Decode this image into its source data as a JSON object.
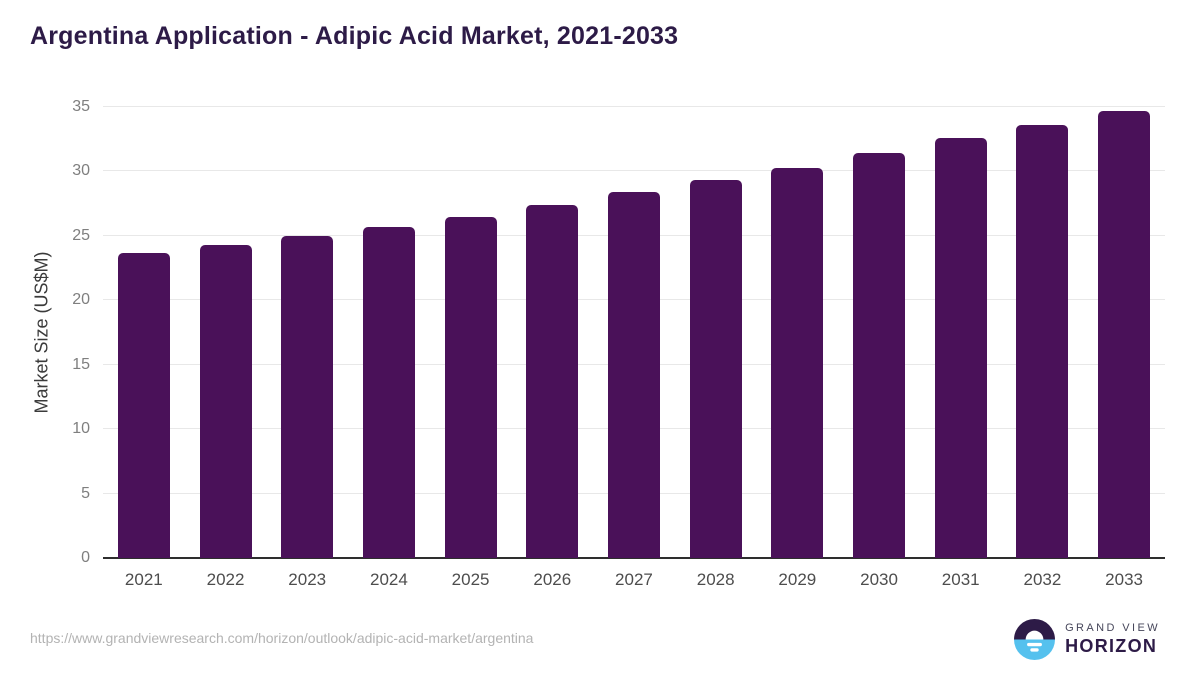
{
  "chart_data": {
    "type": "bar",
    "title": "Argentina Application - Adipic Acid Market, 2021-2033",
    "xlabel": "",
    "ylabel": "Market Size (US$M)",
    "categories": [
      "2021",
      "2022",
      "2023",
      "2024",
      "2025",
      "2026",
      "2027",
      "2028",
      "2029",
      "2030",
      "2031",
      "2032",
      "2033"
    ],
    "values": [
      23.7,
      24.3,
      25.0,
      25.7,
      26.5,
      27.4,
      28.4,
      29.3,
      30.3,
      31.4,
      32.6,
      33.6,
      34.7
    ],
    "ylim": [
      0,
      35
    ],
    "yticks": [
      0,
      5,
      10,
      15,
      20,
      25,
      30,
      35
    ],
    "grid": "horizontal",
    "legend": "none",
    "bar_color": "#4a1159"
  },
  "colors": {
    "title": "#2d1b47",
    "bar": "#4a1159",
    "gridline": "#e8e8e8",
    "axis_line": "#2e2e2e",
    "x_tick_labels": "#4d4d4d",
    "y_tick_labels": "#7f7f7f",
    "source_url_text": "#b3b3b3",
    "logo_purple": "#2d1b47",
    "logo_blue": "#55c1ee"
  },
  "footer": {
    "source_url": "https://www.grandviewresearch.com/horizon/outlook/adipic-acid-market/argentina",
    "logo": {
      "line1": "GRAND VIEW",
      "line2": "HORIZON"
    }
  }
}
